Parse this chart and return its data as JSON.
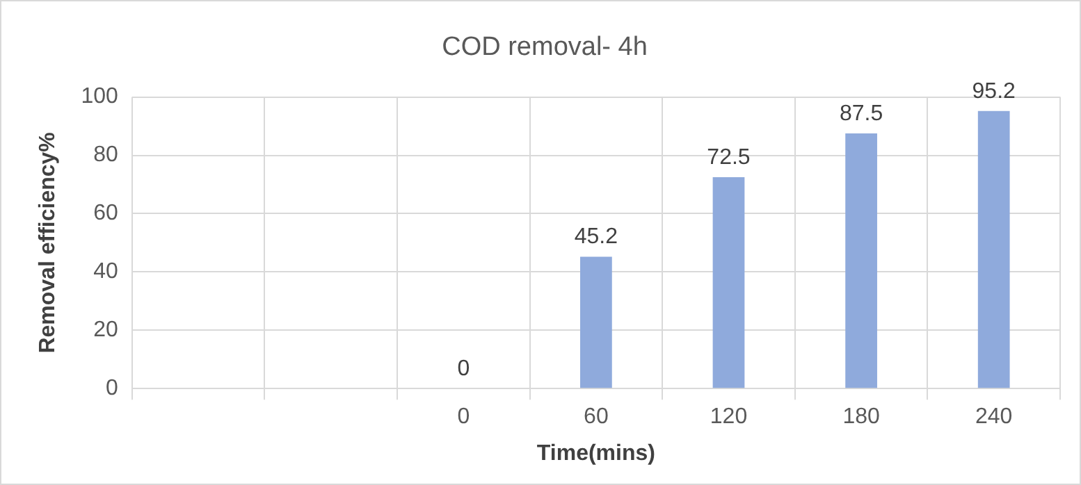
{
  "chart_data": {
    "type": "bar",
    "title": "COD removal- 4h",
    "xlabel": "Time(mins)",
    "ylabel": "Removal efficiency%",
    "categories": [
      null,
      null,
      "0",
      "60",
      "120",
      "180",
      "240"
    ],
    "values": [
      null,
      null,
      0,
      45.2,
      72.5,
      87.5,
      95.2
    ],
    "color": "#8faadc",
    "ylim": [
      0,
      100
    ],
    "yticks": [
      0,
      20,
      40,
      60,
      80,
      100
    ],
    "grid": true,
    "data_labels": true,
    "legend": false
  }
}
